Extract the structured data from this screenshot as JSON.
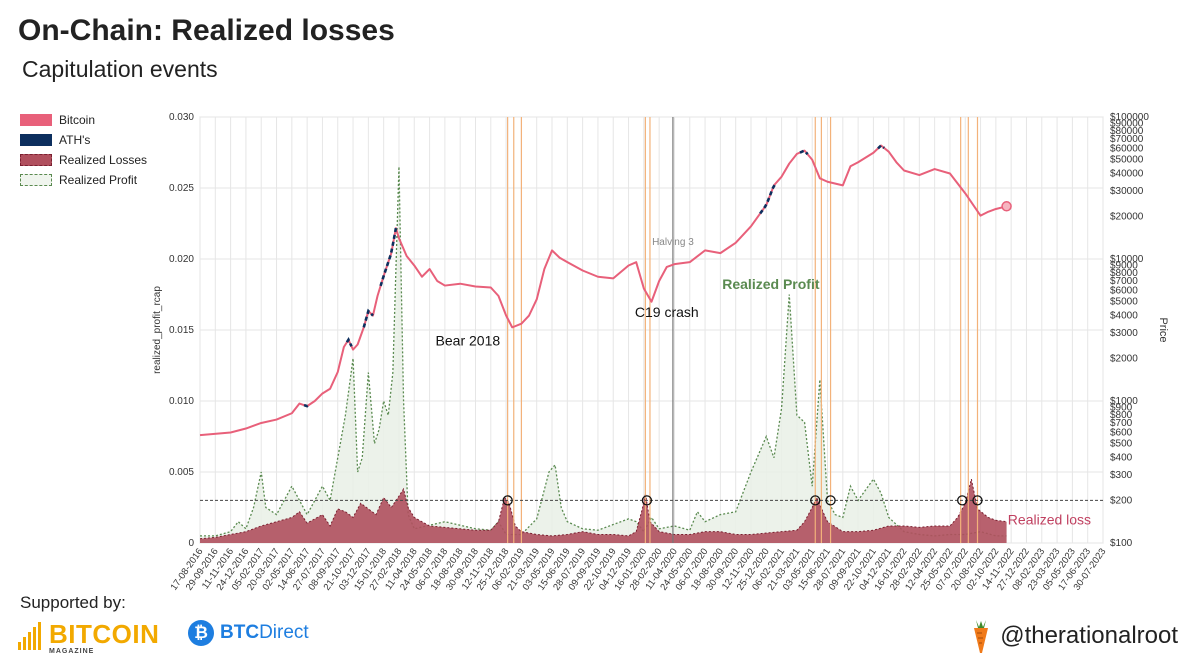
{
  "header": {
    "title": "On-Chain: Realized losses",
    "subtitle": "Capitulation events"
  },
  "legend": {
    "items": [
      {
        "label": "Bitcoin",
        "color": "#e8607a"
      },
      {
        "label": "ATH's",
        "color": "#0d2f5e"
      },
      {
        "label": "Realized Losses",
        "color": "#b0505e"
      },
      {
        "label": "Realized Profit",
        "color": "#5a8a50"
      }
    ]
  },
  "footer": {
    "supported_by": "Supported by:",
    "sponsor1_name": "BITCOIN",
    "sponsor1_sub": "MAGAZINE",
    "sponsor2_symbol": "₿",
    "sponsor2_a": "BTC",
    "sponsor2_b": "Direct",
    "handle": "@therationalroot"
  },
  "chart_data": {
    "type": "line",
    "ylabel_left": "realized_profit_rcap",
    "ylabel_right": "Price",
    "ylim_left": [
      0,
      0.03
    ],
    "left_ticks": [
      "0",
      "0.005",
      "0.010",
      "0.015",
      "0.020",
      "0.025",
      "0.030"
    ],
    "right_ticks": [
      {
        "v": 100,
        "label": "$100"
      },
      {
        "v": 200,
        "label": "$200"
      },
      {
        "v": 300,
        "label": "$300"
      },
      {
        "v": 400,
        "label": "$400"
      },
      {
        "v": 500,
        "label": "$500"
      },
      {
        "v": 600,
        "label": "$600"
      },
      {
        "v": 700,
        "label": "$700"
      },
      {
        "v": 800,
        "label": "$800"
      },
      {
        "v": 900,
        "label": "$900"
      },
      {
        "v": 1000,
        "label": "$1000"
      },
      {
        "v": 2000,
        "label": "$2000"
      },
      {
        "v": 3000,
        "label": "$3000"
      },
      {
        "v": 4000,
        "label": "$4000"
      },
      {
        "v": 5000,
        "label": "$5000"
      },
      {
        "v": 6000,
        "label": "$6000"
      },
      {
        "v": 7000,
        "label": "$7000"
      },
      {
        "v": 8000,
        "label": "$8000"
      },
      {
        "v": 9000,
        "label": "$9000"
      },
      {
        "v": 10000,
        "label": "$10000"
      },
      {
        "v": 20000,
        "label": "$20000"
      },
      {
        "v": 30000,
        "label": "$30000"
      },
      {
        "v": 40000,
        "label": "$40000"
      },
      {
        "v": 50000,
        "label": "$50000"
      },
      {
        "v": 60000,
        "label": "$60000"
      },
      {
        "v": 70000,
        "label": "$70000"
      },
      {
        "v": 80000,
        "label": "$80000"
      },
      {
        "v": 90000,
        "label": "$90000"
      },
      {
        "v": 100000,
        "label": "$100000"
      }
    ],
    "x_ticks": [
      "17-08-2016",
      "29-09-2016",
      "11-11-2016",
      "24-12-2016",
      "05-02-2017",
      "20-03-2017",
      "02-05-2017",
      "14-06-2017",
      "27-07-2017",
      "08-09-2017",
      "21-10-2017",
      "03-12-2017",
      "15-01-2018",
      "27-02-2018",
      "11-04-2018",
      "24-05-2018",
      "06-07-2018",
      "18-08-2018",
      "30-09-2018",
      "12-11-2018",
      "25-12-2018",
      "06-02-2019",
      "21-03-2019",
      "03-05-2019",
      "15-06-2019",
      "28-07-2019",
      "09-09-2019",
      "22-10-2019",
      "04-12-2019",
      "16-01-2020",
      "28-02-2020",
      "11-04-2020",
      "24-05-2020",
      "06-07-2020",
      "18-08-2020",
      "30-09-2020",
      "12-11-2020",
      "25-12-2020",
      "06-02-2021",
      "21-03-2021",
      "03-05-2021",
      "15-06-2021",
      "28-07-2021",
      "09-09-2021",
      "22-10-2021",
      "04-12-2021",
      "16-01-2022",
      "28-02-2022",
      "12-04-2022",
      "25-05-2022",
      "07-07-2022",
      "20-08-2022",
      "02-10-2022",
      "14-11-2022",
      "27-12-2022",
      "08-02-2023",
      "23-03-2023",
      "05-05-2023",
      "17-06-2023",
      "30-07-2023"
    ],
    "price_series": [
      [
        0,
        575
      ],
      [
        2,
        600
      ],
      [
        3,
        640
      ],
      [
        4,
        700
      ],
      [
        5,
        740
      ],
      [
        6,
        820
      ],
      [
        6.5,
        960
      ],
      [
        7,
        920
      ],
      [
        7.5,
        1000
      ],
      [
        8,
        1130
      ],
      [
        8.5,
        1220
      ],
      [
        9,
        1600
      ],
      [
        9.4,
        2400
      ],
      [
        9.7,
        2700
      ],
      [
        10,
        2300
      ],
      [
        10.3,
        2500
      ],
      [
        10.7,
        3300
      ],
      [
        11,
        4300
      ],
      [
        11.3,
        4000
      ],
      [
        11.6,
        5500
      ],
      [
        12,
        7600
      ],
      [
        12.5,
        11000
      ],
      [
        12.8,
        16500
      ],
      [
        13,
        14000
      ],
      [
        13.5,
        10500
      ],
      [
        14,
        9000
      ],
      [
        14.5,
        7500
      ],
      [
        15,
        8500
      ],
      [
        15.5,
        7000
      ],
      [
        16,
        6500
      ],
      [
        17,
        6700
      ],
      [
        18,
        6400
      ],
      [
        19,
        6300
      ],
      [
        19.5,
        5500
      ],
      [
        20,
        4000
      ],
      [
        20.4,
        3300
      ],
      [
        21,
        3500
      ],
      [
        21.5,
        4000
      ],
      [
        22,
        5200
      ],
      [
        22.5,
        8500
      ],
      [
        23,
        11500
      ],
      [
        23.5,
        10200
      ],
      [
        24,
        9500
      ],
      [
        25,
        8300
      ],
      [
        26,
        7500
      ],
      [
        27,
        7300
      ],
      [
        28,
        9000
      ],
      [
        28.5,
        9500
      ],
      [
        29,
        6200
      ],
      [
        29.5,
        5000
      ],
      [
        30,
        7000
      ],
      [
        30.5,
        8800
      ],
      [
        31,
        9200
      ],
      [
        32,
        9500
      ],
      [
        33,
        11500
      ],
      [
        34,
        11000
      ],
      [
        35,
        13000
      ],
      [
        36,
        17000
      ],
      [
        37,
        24000
      ],
      [
        37.5,
        33000
      ],
      [
        38,
        38000
      ],
      [
        38.5,
        47000
      ],
      [
        39,
        55000
      ],
      [
        39.5,
        58000
      ],
      [
        40,
        50000
      ],
      [
        40.5,
        37000
      ],
      [
        41,
        35000
      ],
      [
        42,
        33000
      ],
      [
        42.5,
        45000
      ],
      [
        43,
        48000
      ],
      [
        44,
        56000
      ],
      [
        44.5,
        63000
      ],
      [
        45,
        57000
      ],
      [
        45.5,
        48000
      ],
      [
        46,
        42000
      ],
      [
        47,
        39000
      ],
      [
        48,
        43000
      ],
      [
        49,
        40000
      ],
      [
        50,
        29000
      ],
      [
        51,
        20200
      ],
      [
        51.5,
        21500
      ],
      [
        52,
        22500
      ],
      [
        52.7,
        23500
      ]
    ],
    "ath_segments": [
      [
        6.8,
        7.1
      ],
      [
        9.6,
        9.9
      ],
      [
        10.7,
        11.3
      ],
      [
        11.8,
        12.8
      ],
      [
        36.6,
        37.6
      ],
      [
        39.2,
        39.7
      ],
      [
        44.3,
        44.7
      ]
    ],
    "realized_profit": [
      [
        0,
        0.0005
      ],
      [
        1,
        0.0005
      ],
      [
        2,
        0.0008
      ],
      [
        2.5,
        0.0015
      ],
      [
        3,
        0.001
      ],
      [
        3.5,
        0.0025
      ],
      [
        4,
        0.005
      ],
      [
        4.3,
        0.0025
      ],
      [
        5,
        0.002
      ],
      [
        6,
        0.004
      ],
      [
        6.5,
        0.003
      ],
      [
        7,
        0.002
      ],
      [
        8,
        0.004
      ],
      [
        8.5,
        0.003
      ],
      [
        9,
        0.006
      ],
      [
        9.5,
        0.009
      ],
      [
        10,
        0.013
      ],
      [
        10.3,
        0.005
      ],
      [
        10.6,
        0.006
      ],
      [
        11,
        0.012
      ],
      [
        11.4,
        0.007
      ],
      [
        11.7,
        0.008
      ],
      [
        12,
        0.01
      ],
      [
        12.3,
        0.009
      ],
      [
        12.6,
        0.012
      ],
      [
        13,
        0.0265
      ],
      [
        13.3,
        0.01
      ],
      [
        13.6,
        0.002
      ],
      [
        14,
        0.001
      ],
      [
        16,
        0.0015
      ],
      [
        18,
        0.001
      ],
      [
        19,
        0.0009
      ],
      [
        19.5,
        0.0015
      ],
      [
        20,
        0.0006
      ],
      [
        21,
        0.0006
      ],
      [
        22,
        0.0017
      ],
      [
        22.8,
        0.005
      ],
      [
        23.2,
        0.0055
      ],
      [
        23.6,
        0.0025
      ],
      [
        24,
        0.0015
      ],
      [
        25,
        0.001
      ],
      [
        26,
        0.0009
      ],
      [
        27,
        0.0013
      ],
      [
        28,
        0.0017
      ],
      [
        28.5,
        0.0015
      ],
      [
        29,
        0.0008
      ],
      [
        29.5,
        0.0018
      ],
      [
        30,
        0.001
      ],
      [
        31,
        0.0012
      ],
      [
        32,
        0.0009
      ],
      [
        32.5,
        0.0022
      ],
      [
        33,
        0.0015
      ],
      [
        34,
        0.002
      ],
      [
        35,
        0.0022
      ],
      [
        36,
        0.005
      ],
      [
        37,
        0.0075
      ],
      [
        37.5,
        0.006
      ],
      [
        38,
        0.0095
      ],
      [
        38.5,
        0.0175
      ],
      [
        39,
        0.009
      ],
      [
        39.5,
        0.0085
      ],
      [
        40,
        0.004
      ],
      [
        40.5,
        0.0115
      ],
      [
        41,
        0.003
      ],
      [
        41.5,
        0.002
      ],
      [
        42,
        0.0018
      ],
      [
        42.5,
        0.004
      ],
      [
        43,
        0.003
      ],
      [
        44,
        0.0045
      ],
      [
        44.5,
        0.0035
      ],
      [
        45,
        0.0018
      ],
      [
        46,
        0.0008
      ],
      [
        47,
        0.0006
      ],
      [
        48,
        0.0005
      ],
      [
        49,
        0.0006
      ],
      [
        50,
        0.0006
      ],
      [
        51,
        0.0008
      ],
      [
        52,
        0.0005
      ],
      [
        52.7,
        0.0005
      ]
    ],
    "realized_losses": [
      [
        0,
        0.0003
      ],
      [
        1,
        0.0004
      ],
      [
        2,
        0.0006
      ],
      [
        3,
        0.0008
      ],
      [
        4,
        0.0012
      ],
      [
        5,
        0.0015
      ],
      [
        6,
        0.0018
      ],
      [
        6.5,
        0.0022
      ],
      [
        7,
        0.0014
      ],
      [
        8,
        0.002
      ],
      [
        8.5,
        0.0012
      ],
      [
        9,
        0.0024
      ],
      [
        9.5,
        0.0022
      ],
      [
        10,
        0.0018
      ],
      [
        10.5,
        0.0028
      ],
      [
        11,
        0.0024
      ],
      [
        11.5,
        0.002
      ],
      [
        12,
        0.0032
      ],
      [
        12.5,
        0.0025
      ],
      [
        13,
        0.0033
      ],
      [
        13.3,
        0.0038
      ],
      [
        13.6,
        0.0025
      ],
      [
        14,
        0.0018
      ],
      [
        15,
        0.0012
      ],
      [
        16,
        0.0011
      ],
      [
        17,
        0.001
      ],
      [
        18,
        0.0009
      ],
      [
        19,
        0.0009
      ],
      [
        19.5,
        0.0015
      ],
      [
        19.9,
        0.0032
      ],
      [
        20.2,
        0.0028
      ],
      [
        20.6,
        0.0012
      ],
      [
        21,
        0.0008
      ],
      [
        22,
        0.0006
      ],
      [
        23,
        0.0005
      ],
      [
        24,
        0.0006
      ],
      [
        25,
        0.0008
      ],
      [
        26,
        0.0006
      ],
      [
        27,
        0.0006
      ],
      [
        28,
        0.0005
      ],
      [
        28.5,
        0.0008
      ],
      [
        28.9,
        0.0024
      ],
      [
        29.1,
        0.0035
      ],
      [
        29.4,
        0.0015
      ],
      [
        30,
        0.0008
      ],
      [
        31,
        0.0006
      ],
      [
        32,
        0.0006
      ],
      [
        33,
        0.0008
      ],
      [
        34,
        0.0008
      ],
      [
        35,
        0.0006
      ],
      [
        36,
        0.0006
      ],
      [
        37,
        0.0007
      ],
      [
        38,
        0.0008
      ],
      [
        39,
        0.0009
      ],
      [
        39.5,
        0.0015
      ],
      [
        40,
        0.0025
      ],
      [
        40.3,
        0.0032
      ],
      [
        40.7,
        0.0022
      ],
      [
        41,
        0.0015
      ],
      [
        42,
        0.0008
      ],
      [
        43,
        0.0008
      ],
      [
        44,
        0.0009
      ],
      [
        45,
        0.0012
      ],
      [
        46,
        0.0012
      ],
      [
        47,
        0.0011
      ],
      [
        48,
        0.0012
      ],
      [
        49,
        0.0012
      ],
      [
        49.5,
        0.0018
      ],
      [
        50,
        0.0028
      ],
      [
        50.4,
        0.0045
      ],
      [
        50.8,
        0.0024
      ],
      [
        51.5,
        0.0018
      ],
      [
        52,
        0.0016
      ],
      [
        52.7,
        0.0015
      ]
    ],
    "capitulation_threshold": 0.003,
    "capitulation_events": [
      20.1,
      29.2,
      40.2,
      41.2,
      49.8,
      50.8
    ],
    "vertical_lines": [
      20.1,
      20.5,
      21.0,
      29.1,
      29.4,
      40.2,
      40.6,
      41.2,
      49.7,
      50.2,
      50.8
    ],
    "halving_x": 30.9,
    "annotations": [
      {
        "text": "Bear 2018",
        "x": 17.5,
        "y": 0.0139
      },
      {
        "text": "C19 crash",
        "x": 30.5,
        "y": 0.0159
      },
      {
        "text": "Halving 3",
        "x": 30.9,
        "y": 0.021
      },
      {
        "text": "Realized Profit",
        "x": 37.3,
        "y": 0.0179
      },
      {
        "text": "Realized loss",
        "x": 55.5,
        "y": 0.0013
      }
    ]
  }
}
